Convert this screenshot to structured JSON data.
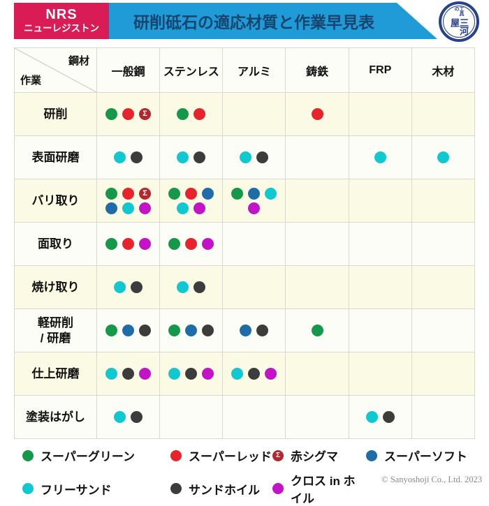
{
  "header": {
    "brand": {
      "line1": "NRS",
      "line2": "ニューレジストン",
      "bg": "#D91C56"
    },
    "title": {
      "text": "研削砥石の適応材質と作業早見表",
      "bg": "#1F9CD8",
      "color": "#17456E"
    },
    "logo": {
      "small": "工具の",
      "main": "三河屋",
      "color": "#27418B"
    }
  },
  "products": {
    "green": {
      "name": "スーパーグリーン",
      "color": "#16984B"
    },
    "red": {
      "name": "スーパーレッド",
      "color": "#E7242B"
    },
    "sigma": {
      "name": "赤シグマ",
      "color": "#B4272E",
      "glyph": "Σ"
    },
    "blue": {
      "name": "スーパーソフト",
      "color": "#1E6CA8"
    },
    "cyan": {
      "name": "フリーサンド",
      "color": "#10C8CF"
    },
    "dark": {
      "name": "サンドホイル",
      "color": "#3C3C3C"
    },
    "magenta": {
      "name": "クロス in ホイル",
      "color": "#C312C7"
    }
  },
  "table": {
    "corner": {
      "top_right": "鋼材",
      "bottom_left": "作業"
    },
    "columns": [
      "一般鋼",
      "ステンレス",
      "アルミ",
      "鋳鉄",
      "FRP",
      "木材"
    ],
    "row_colors": {
      "odd": "#FBFAE5",
      "even": "#FDFDF7"
    },
    "rows": [
      {
        "label": "研削",
        "cells": [
          [
            "green",
            "red",
            "sigma"
          ],
          [
            "green",
            "red"
          ],
          [],
          [
            "red"
          ],
          [],
          []
        ]
      },
      {
        "label": "表面研磨",
        "cells": [
          [
            "cyan",
            "dark"
          ],
          [
            "cyan",
            "dark"
          ],
          [
            "cyan",
            "dark"
          ],
          [],
          [
            "cyan"
          ],
          [
            "cyan"
          ]
        ]
      },
      {
        "label": "バリ取り",
        "cells": [
          [
            "green",
            "red",
            "sigma",
            "blue",
            "cyan",
            "magenta"
          ],
          [
            "green",
            "red",
            "blue",
            "cyan",
            "magenta"
          ],
          [
            "green",
            "blue",
            "cyan",
            "magenta"
          ],
          [],
          [],
          []
        ]
      },
      {
        "label": "面取り",
        "cells": [
          [
            "green",
            "red",
            "magenta"
          ],
          [
            "green",
            "red",
            "magenta"
          ],
          [],
          [],
          [],
          []
        ]
      },
      {
        "label": "焼け取り",
        "cells": [
          [
            "cyan",
            "dark"
          ],
          [
            "cyan",
            "dark"
          ],
          [],
          [],
          [],
          []
        ]
      },
      {
        "label": "軽研削\n/ 研磨",
        "cells": [
          [
            "green",
            "blue",
            "dark"
          ],
          [
            "green",
            "blue",
            "dark"
          ],
          [
            "blue",
            "dark"
          ],
          [
            "green"
          ],
          [],
          []
        ]
      },
      {
        "label": "仕上研磨",
        "cells": [
          [
            "cyan",
            "dark",
            "magenta"
          ],
          [
            "cyan",
            "dark",
            "magenta"
          ],
          [
            "cyan",
            "dark",
            "magenta"
          ],
          [],
          [],
          []
        ]
      },
      {
        "label": "塗装はがし",
        "cells": [
          [
            "cyan",
            "dark"
          ],
          [],
          [],
          [],
          [
            "cyan",
            "dark"
          ],
          []
        ]
      }
    ]
  },
  "legend": {
    "rows": [
      [
        "green",
        "red",
        "sigma",
        "blue"
      ],
      [
        "cyan",
        "dark",
        "magenta"
      ]
    ]
  },
  "copyright": "© Sanyoshoji Co., Ltd. 2023",
  "chart_data": {
    "type": "table",
    "title": "研削砥石の適応材質と作業早見表",
    "columns": [
      "作業",
      "一般鋼",
      "ステンレス",
      "アルミ",
      "鋳鉄",
      "FRP",
      "木材"
    ],
    "rows": [
      [
        "研削",
        "スーパーグリーン, スーパーレッド, 赤シグマ",
        "スーパーグリーン, スーパーレッド",
        "",
        "スーパーレッド",
        "",
        ""
      ],
      [
        "表面研磨",
        "フリーサンド, サンドホイル",
        "フリーサンド, サンドホイル",
        "フリーサンド, サンドホイル",
        "",
        "フリーサンド",
        "フリーサンド"
      ],
      [
        "バリ取り",
        "スーパーグリーン, スーパーレッド, 赤シグマ, スーパーソフト, フリーサンド, クロス in ホイル",
        "スーパーグリーン, スーパーレッド, スーパーソフト, フリーサンド, クロス in ホイル",
        "スーパーグリーン, スーパーソフト, フリーサンド, クロス in ホイル",
        "",
        "",
        ""
      ],
      [
        "面取り",
        "スーパーグリーン, スーパーレッド, クロス in ホイル",
        "スーパーグリーン, スーパーレッド, クロス in ホイル",
        "",
        "",
        "",
        ""
      ],
      [
        "焼け取り",
        "フリーサンド, サンドホイル",
        "フリーサンド, サンドホイル",
        "",
        "",
        "",
        ""
      ],
      [
        "軽研削 / 研磨",
        "スーパーグリーン, スーパーソフト, サンドホイル",
        "スーパーグリーン, スーパーソフト, サンドホイル",
        "スーパーソフト, サンドホイル",
        "スーパーグリーン",
        "",
        ""
      ],
      [
        "仕上研磨",
        "フリーサンド, サンドホイル, クロス in ホイル",
        "フリーサンド, サンドホイル, クロス in ホイル",
        "フリーサンド, サンドホイル, クロス in ホイル",
        "",
        "",
        ""
      ],
      [
        "塗装はがし",
        "フリーサンド, サンドホイル",
        "",
        "",
        "",
        "フリーサンド, サンドホイル",
        ""
      ]
    ],
    "legend_entries": [
      "スーパーグリーン",
      "スーパーレッド",
      "赤シグマ",
      "スーパーソフト",
      "フリーサンド",
      "サンドホイル",
      "クロス in ホイル"
    ]
  }
}
